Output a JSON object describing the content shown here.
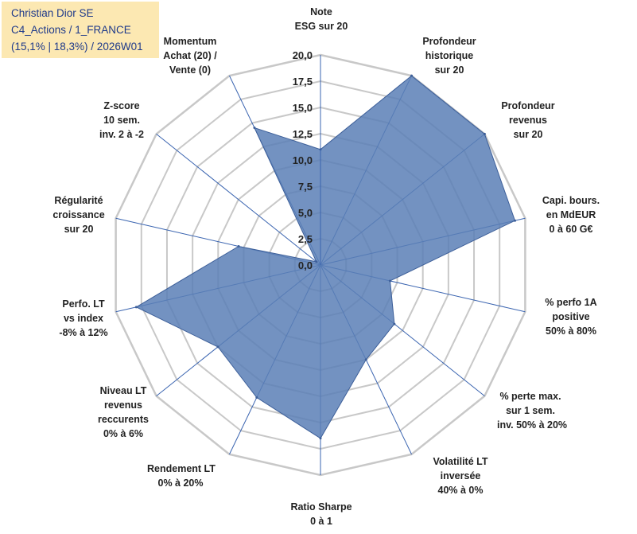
{
  "info_box": {
    "line1": "Christian Dior SE",
    "line2": "C4_Actions / 1_FRANCE",
    "line3": "(15,1% | 18,3%) / 2026W01"
  },
  "chart_data": {
    "type": "radar",
    "title": "Christian Dior SE",
    "rlim": [
      0,
      20
    ],
    "tick_step": 2.5,
    "tick_labels": [
      "0,0",
      "2,5",
      "5,0",
      "7,5",
      "10,0",
      "12,5",
      "15,0",
      "17,5",
      "20,0"
    ],
    "axes": [
      {
        "lines": [
          "Note",
          "ESG sur 20"
        ]
      },
      {
        "lines": [
          "Profondeur",
          "historique",
          "sur 20"
        ]
      },
      {
        "lines": [
          "Profondeur",
          "revenus",
          "sur 20"
        ]
      },
      {
        "lines": [
          "Capi. bours.",
          "en MdEUR",
          "0 à 60 G€"
        ]
      },
      {
        "lines": [
          "% perfo 1A",
          "positive",
          "50% à 80%"
        ]
      },
      {
        "lines": [
          "% perte max.",
          "sur 1 sem.",
          "inv. 50% à 20%"
        ]
      },
      {
        "lines": [
          "Volatilité LT",
          "inversée",
          "40% à 0%"
        ]
      },
      {
        "lines": [
          "Ratio Sharpe",
          "0 à 1"
        ]
      },
      {
        "lines": [
          "Rendement LT",
          "0% à 20%"
        ]
      },
      {
        "lines": [
          "Niveau LT",
          "revenus",
          "reccurents",
          "0% à 6%"
        ]
      },
      {
        "lines": [
          "Perfo. LT",
          "vs index",
          "-8% à 12%"
        ]
      },
      {
        "lines": [
          "Régularité",
          "croissance",
          "sur 20"
        ]
      },
      {
        "lines": [
          "Z-score",
          "10 sem.",
          "inv. 2 à -2"
        ]
      },
      {
        "lines": [
          "Momentum",
          "Achat (20) /",
          "Vente (0)"
        ]
      }
    ],
    "series": [
      {
        "name": "Christian Dior SE",
        "values": [
          11.0,
          20.0,
          20.0,
          19.0,
          6.8,
          9.0,
          10.0,
          16.5,
          14.0,
          12.5,
          18.0,
          8.0,
          0.5,
          14.5
        ]
      }
    ],
    "colors": {
      "fill": "#5b7fb6",
      "stroke": "#3d5f99",
      "grid": "#c8c8c8",
      "axis": "#3a64b0"
    }
  }
}
